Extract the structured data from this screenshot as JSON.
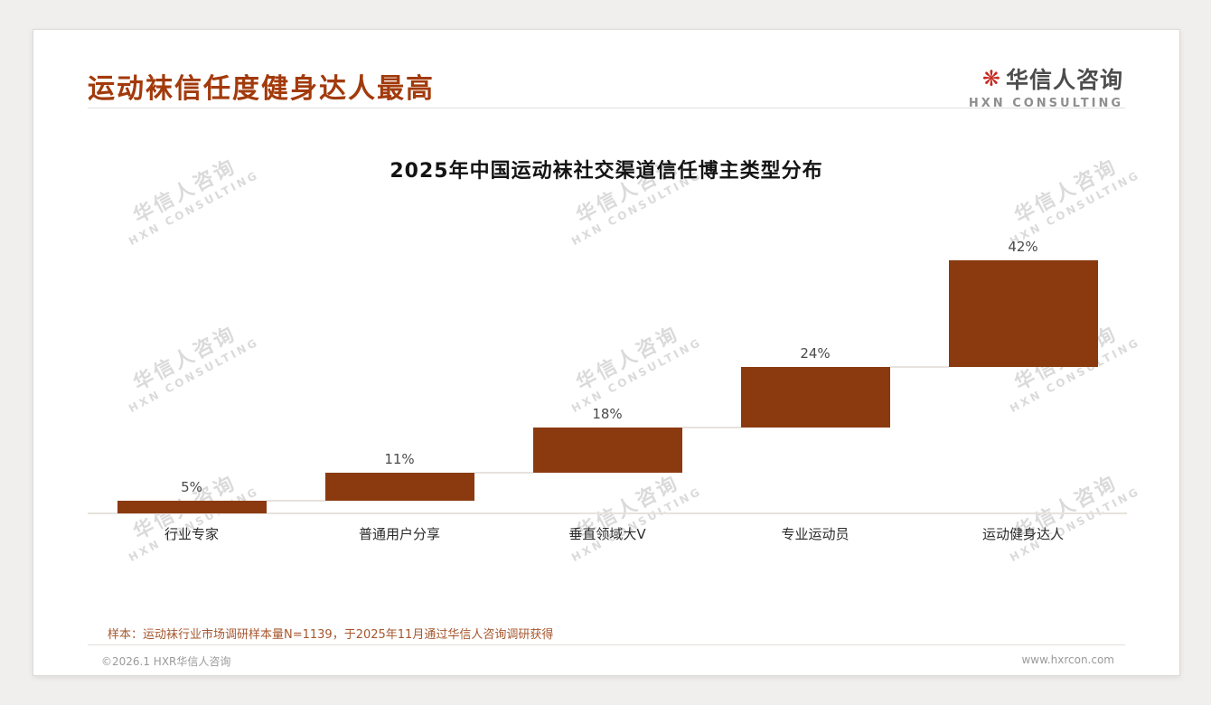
{
  "slide": {
    "header": {
      "title": "运动袜信任度健身达人最高",
      "logo": {
        "icon_glyph": "❋",
        "name": "华信人咨询",
        "subtitle": "HXN CONSULTING"
      }
    },
    "watermark": {
      "line1": "华信人咨询",
      "line2": "HXN CONSULTING"
    },
    "footnote": "样本：运动袜行业市场调研样本量N=1139，于2025年11月通过华信人咨询调研获得",
    "footer": {
      "copyright": "©2026.1 HXR华信人咨询",
      "website": "www.hxrcon.com"
    }
  },
  "chart_data": {
    "type": "bar",
    "subtype": "waterfall-steps",
    "title": "2025年中国运动袜社交渠道信任博主类型分布",
    "categories": [
      "行业专家",
      "普通用户分享",
      "垂直领域大V",
      "专业运动员",
      "运动健身达人"
    ],
    "values": [
      5,
      11,
      18,
      24,
      42
    ],
    "value_labels": [
      "5%",
      "11%",
      "18%",
      "24%",
      "42%"
    ],
    "cumulative_baselines": [
      0,
      5,
      16,
      34,
      58
    ],
    "unit": "%",
    "ylim": [
      0,
      100
    ],
    "grid": false,
    "legend": false,
    "bar_color": "#8B3A10",
    "connector_color": "#e7e2dd",
    "value_label_color": "#4a4a4a"
  }
}
